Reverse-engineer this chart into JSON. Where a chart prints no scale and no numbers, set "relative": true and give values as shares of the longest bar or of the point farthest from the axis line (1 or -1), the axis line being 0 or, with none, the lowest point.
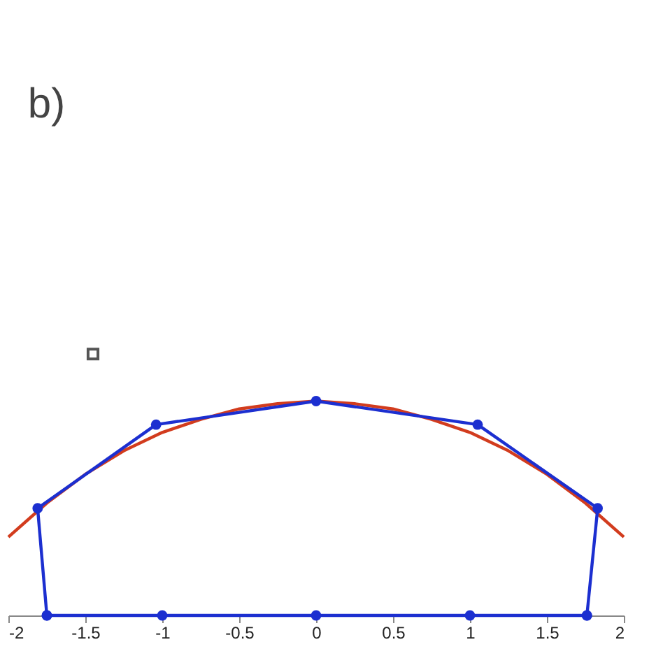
{
  "chart_data": {
    "type": "line",
    "title": "b)",
    "relative": true,
    "xlim": [
      -2,
      2
    ],
    "xticks": [
      -2,
      -1.5,
      -1,
      -0.5,
      0,
      0.5,
      1,
      1.5,
      2
    ],
    "grid": false,
    "series": [
      {
        "color": "#d23c1e",
        "marker": "none",
        "x": [
          -2,
          -1.75,
          -1.5,
          -1.25,
          -1,
          -0.75,
          -0.5,
          -0.25,
          0,
          0.25,
          0.5,
          0.75,
          1,
          1.25,
          1.5,
          1.75,
          2
        ],
        "values": [
          0.3,
          0.43,
          0.54,
          0.63,
          0.7,
          0.75,
          0.79,
          0.81,
          0.82,
          0.81,
          0.79,
          0.75,
          0.7,
          0.63,
          0.54,
          0.43,
          0.3
        ]
      },
      {
        "color": "#1c2fd0",
        "marker": "circle",
        "x": [
          -1.75,
          -1,
          0,
          1,
          1.76
        ],
        "values": [
          0,
          0,
          0,
          0,
          0
        ]
      },
      {
        "color": "#1c2fd0",
        "marker": "circle",
        "x": [
          -1.75,
          -1.81,
          -1.04,
          0,
          1.05,
          1.83,
          1.76
        ],
        "values": [
          0,
          0.41,
          0.73,
          0.82,
          0.73,
          0.41,
          0
        ]
      },
      {
        "type": "scatter",
        "color": "#555555",
        "marker": "square",
        "x": [
          -1.45
        ],
        "values": [
          1
        ]
      }
    ]
  }
}
